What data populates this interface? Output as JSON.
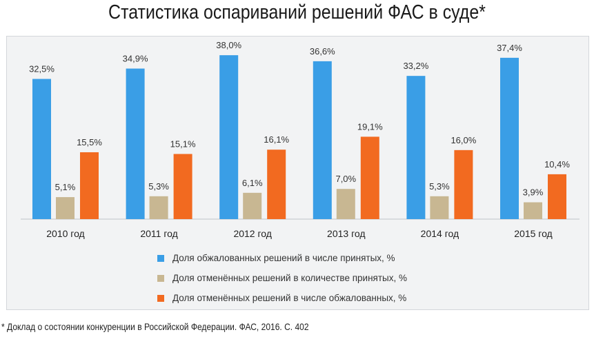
{
  "header": {
    "title": "Статистика оспариваний решений ФАС в суде*"
  },
  "footnote": "* Доклад о состоянии конкуренции в Российской Федерации. ФАС, 2016. С. 402",
  "chart_data": {
    "type": "bar",
    "title": "Статистика оспариваний решений ФАС в суде*",
    "categories": [
      "2010 год",
      "2011 год",
      "2012 год",
      "2013 год",
      "2014 год",
      "2015 год"
    ],
    "series": [
      {
        "name": "Доля обжалованных решений в числе принятых, %",
        "color": "#3a9ee6",
        "values": [
          32.5,
          34.9,
          38.0,
          36.6,
          33.2,
          37.4
        ],
        "labels": [
          "32,5%",
          "34,9%",
          "38,0%",
          "36,6%",
          "33,2%",
          "37,4%"
        ]
      },
      {
        "name": "Доля отменённых решений в количестве принятых, %",
        "color": "#c8b792",
        "values": [
          5.1,
          5.3,
          6.1,
          7.0,
          5.3,
          3.9
        ],
        "labels": [
          "5,1%",
          "5,3%",
          "6,1%",
          "7,0%",
          "5,3%",
          "3,9%"
        ]
      },
      {
        "name": "Доля отменённых решений в числе обжалованных, %",
        "color": "#f26a20",
        "values": [
          15.5,
          15.1,
          16.1,
          19.1,
          16.0,
          10.4
        ],
        "labels": [
          "15,5%",
          "15,1%",
          "16,1%",
          "19,1%",
          "16,0%",
          "10,4%"
        ]
      }
    ],
    "ylim": [
      0,
      40
    ],
    "legend": "bottom",
    "grid": false
  }
}
